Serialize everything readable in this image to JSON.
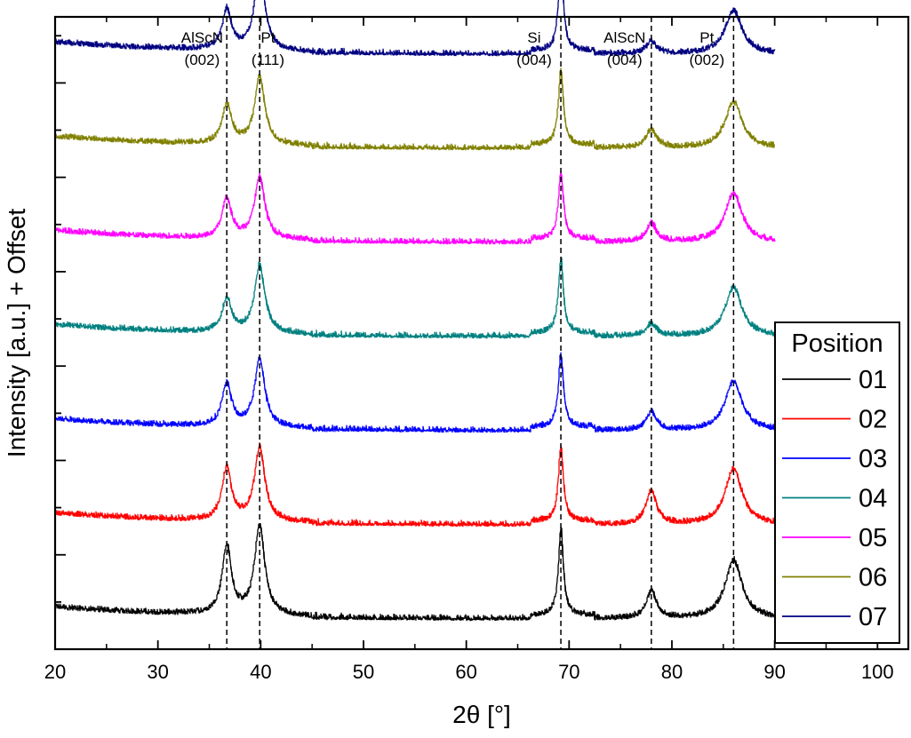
{
  "chart_data": {
    "type": "line",
    "title": "",
    "xlabel": "2θ [°]",
    "ylabel": "Intensity [a.u.] + Offset",
    "xlim": [
      20,
      103
    ],
    "x_ticks": [
      20,
      30,
      40,
      50,
      60,
      70,
      80,
      90,
      100
    ],
    "y_tick_labels_shown": false,
    "grid": false,
    "x_range_measured": [
      20,
      90
    ],
    "legend": {
      "title": "Position",
      "placement": "right"
    },
    "reference_lines": [
      {
        "x": 36.7,
        "label": [
          "AlScN",
          "(002)"
        ]
      },
      {
        "x": 39.9,
        "label": [
          "Pt",
          "(111)"
        ]
      },
      {
        "x": 69.2,
        "label": [
          "Si",
          "(004)"
        ]
      },
      {
        "x": 78.0,
        "label": [
          "AlScN",
          "(004)"
        ]
      },
      {
        "x": 86.0,
        "label": [
          "Pt",
          "(002)"
        ]
      }
    ],
    "series": [
      {
        "name": "01",
        "color": "#000000",
        "peaks": [
          [
            36.7,
            1.1
          ],
          [
            39.9,
            1.45
          ],
          [
            69.2,
            1.4
          ],
          [
            78.0,
            0.45
          ],
          [
            86.0,
            0.95
          ]
        ]
      },
      {
        "name": "02",
        "color": "#ff0000",
        "peaks": [
          [
            36.7,
            0.85
          ],
          [
            39.9,
            1.2
          ],
          [
            69.2,
            1.2
          ],
          [
            78.0,
            0.55
          ],
          [
            86.0,
            0.9
          ]
        ]
      },
      {
        "name": "03",
        "color": "#0000ff",
        "peaks": [
          [
            36.7,
            0.7
          ],
          [
            39.9,
            1.1
          ],
          [
            69.2,
            1.2
          ],
          [
            78.0,
            0.3
          ],
          [
            86.0,
            0.8
          ]
        ]
      },
      {
        "name": "04",
        "color": "#008080",
        "peaks": [
          [
            36.7,
            0.55
          ],
          [
            39.9,
            1.1
          ],
          [
            69.2,
            1.2
          ],
          [
            78.0,
            0.2
          ],
          [
            86.0,
            0.8
          ]
        ]
      },
      {
        "name": "05",
        "color": "#ff00ff",
        "peaks": [
          [
            36.7,
            0.65
          ],
          [
            39.9,
            1.0
          ],
          [
            69.2,
            1.1
          ],
          [
            78.0,
            0.3
          ],
          [
            86.0,
            0.8
          ]
        ]
      },
      {
        "name": "06",
        "color": "#808000",
        "peaks": [
          [
            36.7,
            0.65
          ],
          [
            39.9,
            1.1
          ],
          [
            69.2,
            1.2
          ],
          [
            78.0,
            0.3
          ],
          [
            86.0,
            0.75
          ]
        ]
      },
      {
        "name": "07",
        "color": "#000080",
        "peaks": [
          [
            36.7,
            0.65
          ],
          [
            39.9,
            1.3
          ],
          [
            69.2,
            1.35
          ],
          [
            78.0,
            0.2
          ],
          [
            86.0,
            0.7
          ]
        ]
      }
    ]
  }
}
